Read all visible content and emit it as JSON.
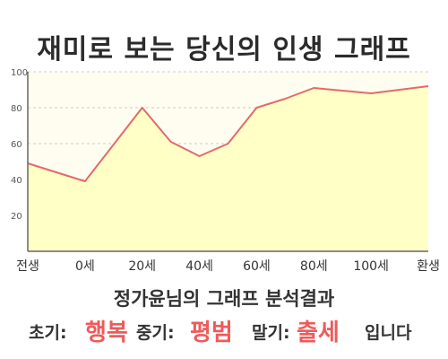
{
  "colors": {
    "line": "#e26a6a",
    "fill": "#ffffc6",
    "plot_background": "#fffdf0",
    "grid": "#cccccc",
    "highlight": "#ee5b5b"
  },
  "chart_data": {
    "type": "area",
    "title": "재미로 보는 당신의 인생 그래프",
    "xlabel": "",
    "ylabel": "",
    "x_tick_labels": [
      "전생",
      "0세",
      "20세",
      "40세",
      "60세",
      "80세",
      "100세",
      "환생"
    ],
    "ylim": [
      0,
      100
    ],
    "y_ticks": [
      20,
      40,
      60,
      80,
      100
    ],
    "grid": true,
    "legend": "none",
    "series": [
      {
        "x": [
          -20,
          0,
          20,
          30,
          40,
          50,
          60,
          70,
          80,
          100,
          120
        ],
        "y": [
          49,
          39,
          80,
          61,
          53,
          60,
          80,
          85,
          91,
          88,
          92
        ]
      }
    ]
  },
  "result": {
    "title": "정가윤님의 그래프 분석결과",
    "early_label": "초기:",
    "early_value": "행복",
    "middle_label": "중기:",
    "middle_value": "평범",
    "late_label": "말기:",
    "late_value": "출세",
    "suffix": "입니다"
  }
}
